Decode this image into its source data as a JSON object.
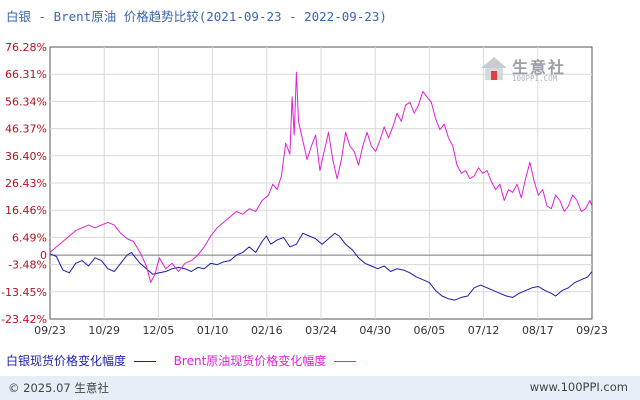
{
  "title": "白银 - Brent原油 价格趋势比较(2021-09-23 - 2022-09-23)",
  "watermark": {
    "name": "生意社",
    "url": "100PPI.COM"
  },
  "footer": {
    "copyright": "© 2025.07 生意社",
    "site": "www.100PPI.com"
  },
  "colors": {
    "silver": "#1c1caa",
    "brent": "#e020d6",
    "grid": "#d9d9d9",
    "axis": "#555555",
    "zero_line": "#777777"
  },
  "chart_data": {
    "type": "line",
    "title": "白银 - Brent原油 价格趋势比较(2021-09-23 - 2022-09-23)",
    "x_ticks": [
      "09/23",
      "10/29",
      "12/05",
      "01/10",
      "02/16",
      "03/24",
      "04/30",
      "06/05",
      "07/12",
      "08/17",
      "09/23"
    ],
    "y_ticks": [
      "76.28%",
      "66.31%",
      "56.34%",
      "46.37%",
      "36.40%",
      "26.43%",
      "16.46%",
      "6.49%",
      "-3.48%",
      "-13.45%",
      "-23.42%"
    ],
    "ylim": [
      -23.42,
      76.28
    ],
    "grid": true,
    "legend_position": "bottom",
    "series": [
      {
        "name": "白银现货价格变化幅度",
        "color": "#1c1caa",
        "points": [
          [
            0,
            0.5
          ],
          [
            3,
            -0.5
          ],
          [
            6,
            -5.5
          ],
          [
            9,
            -6.5
          ],
          [
            12,
            -3
          ],
          [
            15,
            -2
          ],
          [
            18,
            -4
          ],
          [
            21,
            -1
          ],
          [
            24,
            -2
          ],
          [
            27,
            -5
          ],
          [
            30,
            -6
          ],
          [
            33,
            -3
          ],
          [
            36,
            0
          ],
          [
            38,
            1
          ],
          [
            40,
            -1
          ],
          [
            42,
            -3
          ],
          [
            45,
            -5
          ],
          [
            48,
            -7
          ],
          [
            51,
            -6.5
          ],
          [
            54,
            -6
          ],
          [
            57,
            -5
          ],
          [
            60,
            -4.5
          ],
          [
            63,
            -5
          ],
          [
            66,
            -6
          ],
          [
            69,
            -4.5
          ],
          [
            72,
            -5
          ],
          [
            75,
            -3
          ],
          [
            78,
            -3.5
          ],
          [
            81,
            -2.5
          ],
          [
            84,
            -2
          ],
          [
            87,
            0
          ],
          [
            90,
            1
          ],
          [
            93,
            3
          ],
          [
            96,
            1
          ],
          [
            99,
            5
          ],
          [
            101,
            7
          ],
          [
            103,
            4
          ],
          [
            106,
            5.5
          ],
          [
            109,
            6.5
          ],
          [
            112,
            3
          ],
          [
            115,
            4
          ],
          [
            118,
            8
          ],
          [
            121,
            7
          ],
          [
            124,
            6
          ],
          [
            127,
            4
          ],
          [
            130,
            6
          ],
          [
            133,
            8
          ],
          [
            135,
            7
          ],
          [
            138,
            4
          ],
          [
            141,
            2
          ],
          [
            144,
            -1
          ],
          [
            147,
            -3
          ],
          [
            150,
            -4
          ],
          [
            153,
            -5
          ],
          [
            156,
            -4
          ],
          [
            159,
            -6
          ],
          [
            162,
            -5
          ],
          [
            165,
            -5.5
          ],
          [
            168,
            -6.5
          ],
          [
            171,
            -8
          ],
          [
            174,
            -9
          ],
          [
            177,
            -10
          ],
          [
            180,
            -13
          ],
          [
            183,
            -15
          ],
          [
            186,
            -16
          ],
          [
            189,
            -16.5
          ],
          [
            192,
            -15.5
          ],
          [
            195,
            -15
          ],
          [
            198,
            -12
          ],
          [
            201,
            -11
          ],
          [
            204,
            -12
          ],
          [
            207,
            -13
          ],
          [
            210,
            -14
          ],
          [
            213,
            -15
          ],
          [
            216,
            -15.5
          ],
          [
            219,
            -14
          ],
          [
            222,
            -13
          ],
          [
            225,
            -12
          ],
          [
            228,
            -11.5
          ],
          [
            231,
            -13
          ],
          [
            234,
            -14
          ],
          [
            236,
            -15
          ],
          [
            239,
            -13
          ],
          [
            242,
            -12
          ],
          [
            245,
            -10
          ],
          [
            248,
            -9
          ],
          [
            251,
            -8
          ],
          [
            253,
            -6
          ]
        ]
      },
      {
        "name": "Brent原油现货价格变化幅度",
        "color": "#e020d6",
        "points": [
          [
            0,
            1
          ],
          [
            3,
            3
          ],
          [
            6,
            5
          ],
          [
            9,
            7
          ],
          [
            12,
            9
          ],
          [
            15,
            10
          ],
          [
            18,
            11
          ],
          [
            21,
            10
          ],
          [
            24,
            11
          ],
          [
            27,
            12
          ],
          [
            30,
            11
          ],
          [
            33,
            8
          ],
          [
            36,
            6
          ],
          [
            39,
            5
          ],
          [
            42,
            1
          ],
          [
            45,
            -4
          ],
          [
            47,
            -10
          ],
          [
            49,
            -7
          ],
          [
            51,
            -1
          ],
          [
            54,
            -5
          ],
          [
            57,
            -3
          ],
          [
            60,
            -6
          ],
          [
            63,
            -3
          ],
          [
            66,
            -2
          ],
          [
            69,
            0
          ],
          [
            72,
            3
          ],
          [
            75,
            7
          ],
          [
            78,
            10
          ],
          [
            81,
            12
          ],
          [
            84,
            14
          ],
          [
            87,
            16
          ],
          [
            90,
            15
          ],
          [
            93,
            17
          ],
          [
            96,
            16
          ],
          [
            99,
            20
          ],
          [
            102,
            22
          ],
          [
            104,
            26
          ],
          [
            106,
            24
          ],
          [
            108,
            29
          ],
          [
            110,
            41
          ],
          [
            112,
            37
          ],
          [
            113,
            58
          ],
          [
            114,
            44
          ],
          [
            115,
            67
          ],
          [
            116,
            49
          ],
          [
            118,
            42
          ],
          [
            120,
            35
          ],
          [
            122,
            40
          ],
          [
            124,
            44
          ],
          [
            126,
            31
          ],
          [
            128,
            38
          ],
          [
            130,
            45
          ],
          [
            132,
            35
          ],
          [
            134,
            28
          ],
          [
            136,
            35
          ],
          [
            138,
            45
          ],
          [
            140,
            40
          ],
          [
            142,
            38
          ],
          [
            144,
            33
          ],
          [
            146,
            40
          ],
          [
            148,
            45
          ],
          [
            150,
            40
          ],
          [
            152,
            38
          ],
          [
            154,
            42
          ],
          [
            156,
            47
          ],
          [
            158,
            43
          ],
          [
            160,
            47
          ],
          [
            162,
            52
          ],
          [
            164,
            49
          ],
          [
            166,
            55
          ],
          [
            168,
            56
          ],
          [
            170,
            52
          ],
          [
            172,
            55
          ],
          [
            174,
            60
          ],
          [
            176,
            58
          ],
          [
            178,
            56
          ],
          [
            180,
            50
          ],
          [
            182,
            46
          ],
          [
            184,
            48
          ],
          [
            186,
            43
          ],
          [
            188,
            40
          ],
          [
            190,
            33
          ],
          [
            192,
            30
          ],
          [
            194,
            31
          ],
          [
            196,
            28
          ],
          [
            198,
            29
          ],
          [
            200,
            32
          ],
          [
            202,
            30
          ],
          [
            204,
            31
          ],
          [
            206,
            27
          ],
          [
            208,
            24
          ],
          [
            210,
            26
          ],
          [
            212,
            20
          ],
          [
            214,
            24
          ],
          [
            216,
            23
          ],
          [
            218,
            26
          ],
          [
            220,
            21
          ],
          [
            222,
            28
          ],
          [
            224,
            34
          ],
          [
            226,
            27
          ],
          [
            228,
            22
          ],
          [
            230,
            24
          ],
          [
            232,
            18
          ],
          [
            234,
            17
          ],
          [
            236,
            22
          ],
          [
            238,
            20
          ],
          [
            240,
            16
          ],
          [
            242,
            18
          ],
          [
            244,
            22
          ],
          [
            246,
            20
          ],
          [
            248,
            16
          ],
          [
            250,
            17
          ],
          [
            252,
            20
          ],
          [
            253,
            18
          ]
        ]
      }
    ],
    "x_max": 253
  }
}
